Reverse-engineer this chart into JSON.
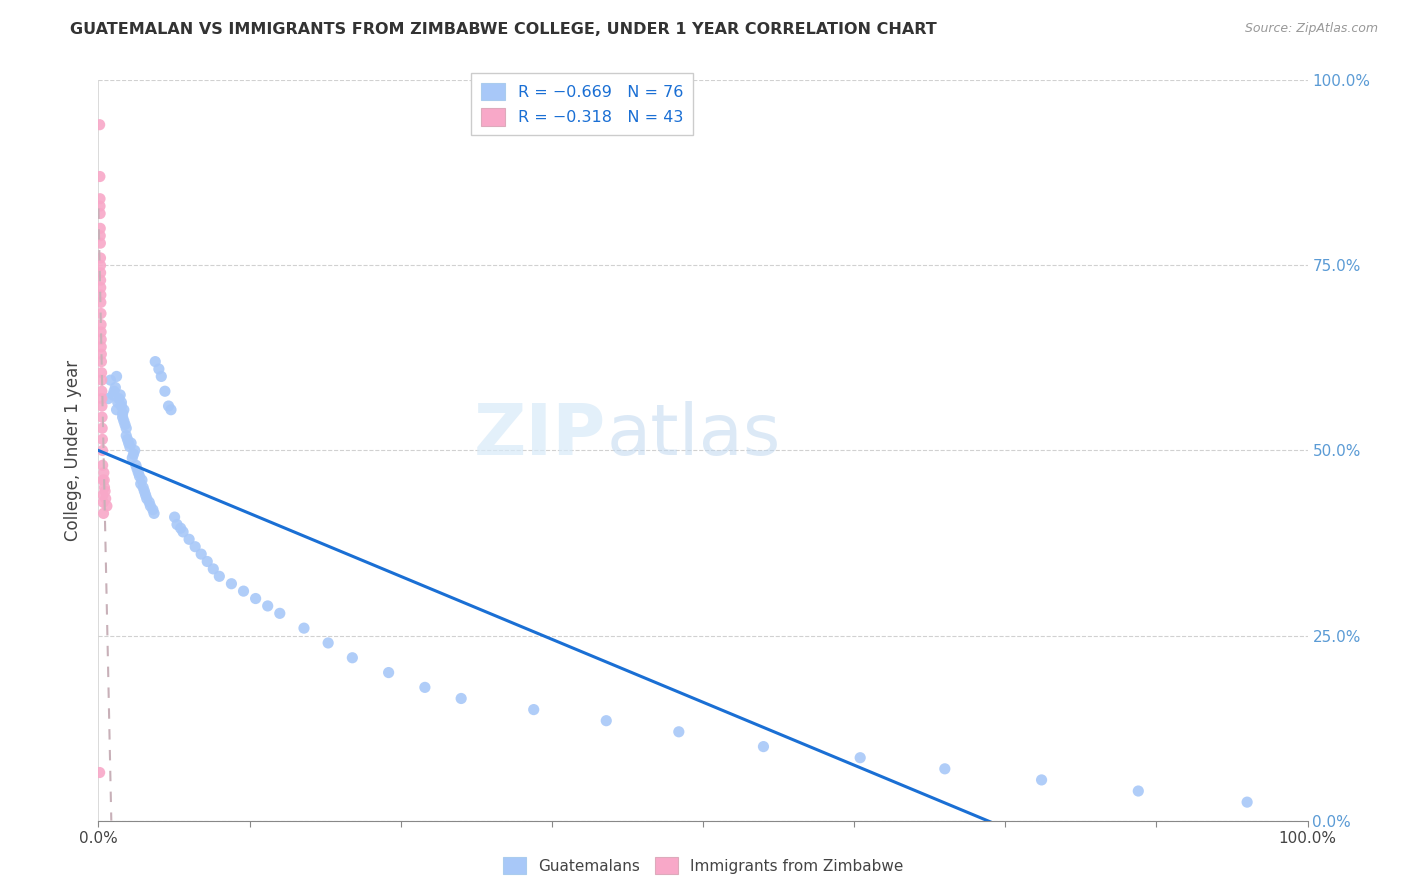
{
  "title": "GUATEMALAN VS IMMIGRANTS FROM ZIMBABWE COLLEGE, UNDER 1 YEAR CORRELATION CHART",
  "source": "Source: ZipAtlas.com",
  "ylabel": "College, Under 1 year",
  "xlim": [
    0,
    1
  ],
  "ylim": [
    0,
    1
  ],
  "guatemalan_color": "#a8c8f8",
  "zimbabwe_color": "#f8a8c8",
  "trend_guatemalan_color": "#1a6fd4",
  "trend_zimbabwe_color": "#e08898",
  "trend_zimbabwe_dash": "#c8b0b8",
  "legend_label_1": "R = −0.669   N = 76",
  "legend_label_2": "R = −0.318   N = 43",
  "legend_guatemalan": "Guatemalans",
  "legend_zimbabwe": "Immigrants from Zimbabwe",
  "watermark_zip": "ZIP",
  "watermark_atlas": "atlas",
  "right_tick_color": "#5b9bd5",
  "yticks": [
    0.0,
    0.25,
    0.5,
    0.75,
    1.0
  ],
  "ytick_labels": [
    "0.0%",
    "25.0%",
    "50.0%",
    "75.0%",
    "100.0%"
  ],
  "xtick_labels_show": [
    "0.0%",
    "100.0%"
  ],
  "guatemalan_x": [
    0.008,
    0.01,
    0.012,
    0.013,
    0.014,
    0.015,
    0.015,
    0.016,
    0.017,
    0.018,
    0.019,
    0.019,
    0.02,
    0.02,
    0.021,
    0.021,
    0.022,
    0.023,
    0.023,
    0.024,
    0.025,
    0.026,
    0.027,
    0.028,
    0.029,
    0.03,
    0.031,
    0.032,
    0.033,
    0.034,
    0.035,
    0.036,
    0.037,
    0.038,
    0.039,
    0.04,
    0.042,
    0.043,
    0.045,
    0.046,
    0.047,
    0.05,
    0.052,
    0.055,
    0.058,
    0.06,
    0.063,
    0.065,
    0.068,
    0.07,
    0.075,
    0.08,
    0.085,
    0.09,
    0.095,
    0.1,
    0.11,
    0.12,
    0.13,
    0.14,
    0.15,
    0.17,
    0.19,
    0.21,
    0.24,
    0.27,
    0.3,
    0.36,
    0.42,
    0.48,
    0.55,
    0.63,
    0.7,
    0.78,
    0.86,
    0.95
  ],
  "guatemalan_y": [
    0.57,
    0.595,
    0.575,
    0.58,
    0.585,
    0.555,
    0.6,
    0.565,
    0.57,
    0.575,
    0.56,
    0.565,
    0.545,
    0.55,
    0.555,
    0.54,
    0.535,
    0.52,
    0.53,
    0.515,
    0.51,
    0.505,
    0.51,
    0.49,
    0.495,
    0.5,
    0.48,
    0.475,
    0.47,
    0.465,
    0.455,
    0.46,
    0.45,
    0.445,
    0.44,
    0.435,
    0.43,
    0.425,
    0.42,
    0.415,
    0.62,
    0.61,
    0.6,
    0.58,
    0.56,
    0.555,
    0.41,
    0.4,
    0.395,
    0.39,
    0.38,
    0.37,
    0.36,
    0.35,
    0.34,
    0.33,
    0.32,
    0.31,
    0.3,
    0.29,
    0.28,
    0.26,
    0.24,
    0.22,
    0.2,
    0.18,
    0.165,
    0.15,
    0.135,
    0.12,
    0.1,
    0.085,
    0.07,
    0.055,
    0.04,
    0.025
  ],
  "zimbabwe_x": [
    0.001,
    0.0012,
    0.0013,
    0.0013,
    0.0014,
    0.0015,
    0.0015,
    0.0016,
    0.0017,
    0.0017,
    0.0018,
    0.0018,
    0.0019,
    0.002,
    0.002,
    0.0021,
    0.0022,
    0.0022,
    0.0023,
    0.0023,
    0.0024,
    0.0025,
    0.0026,
    0.0027,
    0.0028,
    0.0028,
    0.0029,
    0.003,
    0.0031,
    0.0033,
    0.0034,
    0.0035,
    0.0036,
    0.0038,
    0.004,
    0.0042,
    0.0045,
    0.0048,
    0.005,
    0.0055,
    0.006,
    0.007,
    0.001
  ],
  "zimbabwe_y": [
    0.94,
    0.87,
    0.84,
    0.83,
    0.82,
    0.8,
    0.79,
    0.78,
    0.76,
    0.75,
    0.74,
    0.73,
    0.72,
    0.71,
    0.7,
    0.685,
    0.67,
    0.66,
    0.65,
    0.64,
    0.63,
    0.62,
    0.605,
    0.595,
    0.58,
    0.57,
    0.56,
    0.545,
    0.53,
    0.515,
    0.5,
    0.48,
    0.46,
    0.44,
    0.43,
    0.415,
    0.47,
    0.46,
    0.45,
    0.445,
    0.435,
    0.425,
    0.065
  ]
}
